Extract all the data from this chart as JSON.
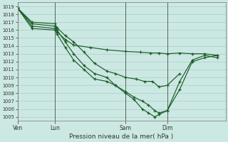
{
  "title": "Pression niveau de la mer( hPa )",
  "background_color": "#cce8e2",
  "grid_color": "#aacccc",
  "line_color": "#1a5c28",
  "ylim": [
    1004.5,
    1019.5
  ],
  "yticks": [
    1005,
    1006,
    1007,
    1008,
    1009,
    1010,
    1011,
    1012,
    1013,
    1014,
    1015,
    1016,
    1017,
    1018,
    1019
  ],
  "xtick_labels": [
    "Ven",
    "Lun",
    "Sam",
    "Dim"
  ],
  "vline_positions": [
    0.0,
    0.18,
    0.52,
    0.72
  ],
  "series1_x": [
    0.0,
    0.07,
    0.18,
    0.19,
    0.23,
    0.27,
    0.35,
    0.43,
    0.52,
    0.59,
    0.64,
    0.68,
    0.72,
    0.78,
    0.84,
    0.9,
    0.96
  ],
  "series1_y": [
    1018.8,
    1016.2,
    1016.0,
    1015.8,
    1014.8,
    1014.1,
    1013.8,
    1013.5,
    1013.3,
    1013.2,
    1013.1,
    1013.1,
    1013.0,
    1013.1,
    1013.0,
    1013.0,
    1012.8
  ],
  "series2_x": [
    0.0,
    0.07,
    0.18,
    0.19,
    0.23,
    0.27,
    0.32,
    0.37,
    0.43,
    0.47,
    0.52,
    0.57,
    0.61,
    0.65,
    0.68,
    0.72,
    0.78
  ],
  "series2_y": [
    1018.8,
    1017.0,
    1016.8,
    1016.3,
    1015.3,
    1014.5,
    1013.2,
    1011.8,
    1010.8,
    1010.5,
    1010.0,
    1009.8,
    1009.5,
    1009.5,
    1008.8,
    1009.0,
    1010.5
  ],
  "series3_x": [
    0.0,
    0.07,
    0.18,
    0.19,
    0.23,
    0.27,
    0.32,
    0.37,
    0.43,
    0.47,
    0.52,
    0.56,
    0.6,
    0.63,
    0.66,
    0.68,
    0.72,
    0.78,
    0.84,
    0.9,
    0.96
  ],
  "series3_y": [
    1018.8,
    1016.5,
    1016.2,
    1015.5,
    1013.8,
    1012.2,
    1011.0,
    1009.8,
    1009.5,
    1009.0,
    1008.2,
    1007.5,
    1007.0,
    1006.5,
    1005.8,
    1005.5,
    1005.8,
    1008.5,
    1012.0,
    1012.5,
    1012.8
  ],
  "series4_x": [
    0.0,
    0.07,
    0.18,
    0.19,
    0.23,
    0.27,
    0.32,
    0.37,
    0.43,
    0.47,
    0.52,
    0.56,
    0.6,
    0.63,
    0.66,
    0.68,
    0.72,
    0.78,
    0.84,
    0.9,
    0.96
  ],
  "series4_y": [
    1018.8,
    1016.8,
    1016.5,
    1016.0,
    1014.5,
    1013.0,
    1011.5,
    1010.5,
    1010.0,
    1009.0,
    1008.0,
    1007.2,
    1006.0,
    1005.5,
    1005.0,
    1005.3,
    1005.8,
    1009.5,
    1012.2,
    1012.8,
    1012.5
  ]
}
